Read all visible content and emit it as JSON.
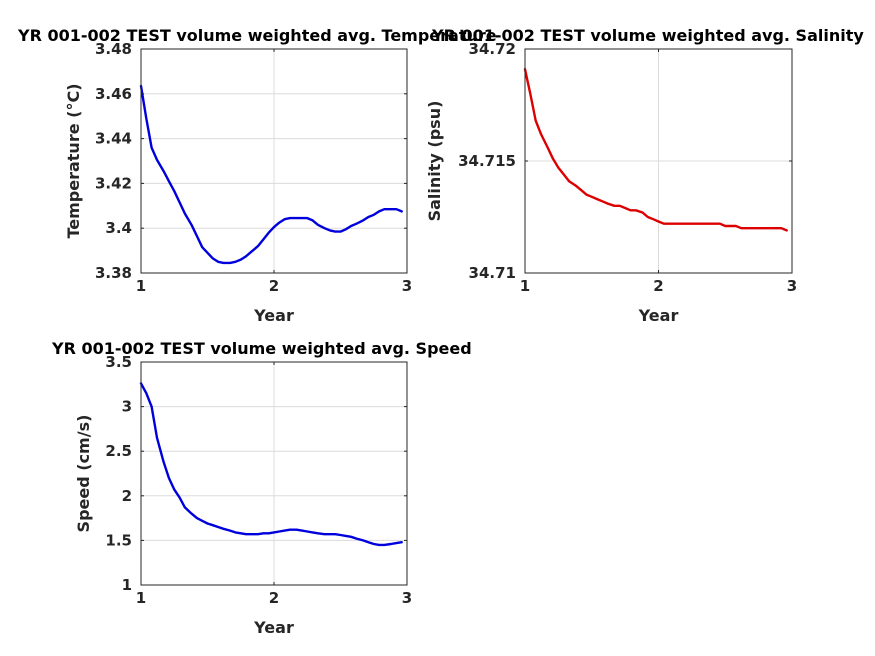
{
  "chart_data": [
    {
      "type": "line",
      "title": "YR 001-002 TEST volume weighted avg. Temperature",
      "xlabel": "Year",
      "ylabel": "Temperature (°C)",
      "xlim": [
        1,
        3
      ],
      "ylim": [
        3.38,
        3.48
      ],
      "xticks": [
        1,
        2,
        3
      ],
      "xtick_labels": [
        "1",
        "2",
        "3"
      ],
      "yticks": [
        3.38,
        3.4,
        3.42,
        3.44,
        3.46,
        3.48
      ],
      "ytick_labels": [
        "3.38",
        "3.4",
        "3.42",
        "3.44",
        "3.46",
        "3.48"
      ],
      "grid": true,
      "color": "#0000dd",
      "series": [
        {
          "x": [
            1.0,
            1.04,
            1.08,
            1.12,
            1.17,
            1.21,
            1.25,
            1.29,
            1.33,
            1.38,
            1.42,
            1.46,
            1.5,
            1.54,
            1.58,
            1.62,
            1.67,
            1.71,
            1.75,
            1.79,
            1.83,
            1.88,
            1.92,
            1.96,
            2.0,
            2.04,
            2.08,
            2.12,
            2.17,
            2.21,
            2.25,
            2.29,
            2.33,
            2.38,
            2.42,
            2.46,
            2.5,
            2.54,
            2.58,
            2.62,
            2.67,
            2.71,
            2.75,
            2.79,
            2.83,
            2.88,
            2.92,
            2.96
          ],
          "y": [
            3.4635,
            3.449,
            3.436,
            3.4305,
            3.4255,
            3.421,
            3.4165,
            3.4115,
            3.4065,
            3.4015,
            3.3965,
            3.3915,
            3.389,
            3.3865,
            3.385,
            3.3845,
            3.3845,
            3.385,
            3.386,
            3.3875,
            3.3895,
            3.392,
            3.395,
            3.398,
            3.4005,
            3.4025,
            3.404,
            3.4045,
            3.4045,
            3.4045,
            3.4045,
            3.4035,
            3.4015,
            3.4,
            3.399,
            3.3985,
            3.3985,
            3.3995,
            3.401,
            3.402,
            3.4035,
            3.405,
            3.406,
            3.4075,
            3.4085,
            3.4085,
            3.4085,
            3.4075
          ]
        }
      ]
    },
    {
      "type": "line",
      "title": "YR 001-002 TEST volume weighted avg. Salinity",
      "xlabel": "Year",
      "ylabel": "Salinity (psu)",
      "xlim": [
        1,
        3
      ],
      "ylim": [
        34.71,
        34.72
      ],
      "xticks": [
        1,
        2,
        3
      ],
      "xtick_labels": [
        "1",
        "2",
        "3"
      ],
      "yticks": [
        34.71,
        34.715,
        34.72
      ],
      "ytick_labels": [
        "34.71",
        "34.715",
        "34.72"
      ],
      "grid": true,
      "color": "#dd0000",
      "series": [
        {
          "x": [
            1.0,
            1.04,
            1.08,
            1.12,
            1.17,
            1.21,
            1.25,
            1.29,
            1.33,
            1.38,
            1.42,
            1.46,
            1.5,
            1.54,
            1.58,
            1.62,
            1.67,
            1.71,
            1.75,
            1.79,
            1.83,
            1.88,
            1.92,
            1.96,
            2.0,
            2.04,
            2.08,
            2.12,
            2.17,
            2.21,
            2.25,
            2.29,
            2.33,
            2.38,
            2.42,
            2.46,
            2.5,
            2.54,
            2.58,
            2.62,
            2.67,
            2.71,
            2.75,
            2.79,
            2.83,
            2.88,
            2.92,
            2.96
          ],
          "y": [
            34.7191,
            34.718,
            34.7168,
            34.7162,
            34.7156,
            34.7151,
            34.7147,
            34.7144,
            34.7141,
            34.7139,
            34.7137,
            34.7135,
            34.7134,
            34.7133,
            34.7132,
            34.7131,
            34.713,
            34.713,
            34.7129,
            34.7128,
            34.7128,
            34.7127,
            34.7125,
            34.7124,
            34.7123,
            34.7122,
            34.7122,
            34.7122,
            34.7122,
            34.7122,
            34.7122,
            34.7122,
            34.7122,
            34.7122,
            34.7122,
            34.7122,
            34.7121,
            34.7121,
            34.7121,
            34.712,
            34.712,
            34.712,
            34.712,
            34.712,
            34.712,
            34.712,
            34.712,
            34.7119
          ]
        }
      ]
    },
    {
      "type": "line",
      "title": "YR 001-002 TEST volume weighted avg. Speed",
      "xlabel": "Year",
      "ylabel": "Speed (cm/s)",
      "xlim": [
        1,
        3
      ],
      "ylim": [
        1,
        3.5
      ],
      "xticks": [
        1,
        2,
        3
      ],
      "xtick_labels": [
        "1",
        "2",
        "3"
      ],
      "yticks": [
        1,
        1.5,
        2,
        2.5,
        3,
        3.5
      ],
      "ytick_labels": [
        "1",
        "1.5",
        "2",
        "2.5",
        "3",
        "3.5"
      ],
      "grid": true,
      "color": "#0000dd",
      "series": [
        {
          "x": [
            1.0,
            1.04,
            1.08,
            1.12,
            1.17,
            1.21,
            1.25,
            1.29,
            1.33,
            1.38,
            1.42,
            1.46,
            1.5,
            1.54,
            1.58,
            1.62,
            1.67,
            1.71,
            1.75,
            1.79,
            1.83,
            1.88,
            1.92,
            1.96,
            2.0,
            2.04,
            2.08,
            2.12,
            2.17,
            2.21,
            2.25,
            2.29,
            2.33,
            2.38,
            2.42,
            2.46,
            2.5,
            2.54,
            2.58,
            2.62,
            2.67,
            2.71,
            2.75,
            2.79,
            2.83,
            2.88,
            2.92,
            2.96
          ],
          "y": [
            3.26,
            3.15,
            3.0,
            2.65,
            2.38,
            2.2,
            2.07,
            1.98,
            1.87,
            1.8,
            1.75,
            1.72,
            1.69,
            1.67,
            1.65,
            1.63,
            1.61,
            1.59,
            1.58,
            1.57,
            1.57,
            1.57,
            1.58,
            1.58,
            1.59,
            1.6,
            1.61,
            1.62,
            1.62,
            1.61,
            1.6,
            1.59,
            1.58,
            1.57,
            1.57,
            1.57,
            1.56,
            1.55,
            1.54,
            1.52,
            1.5,
            1.48,
            1.46,
            1.45,
            1.45,
            1.46,
            1.47,
            1.48
          ]
        }
      ]
    }
  ]
}
